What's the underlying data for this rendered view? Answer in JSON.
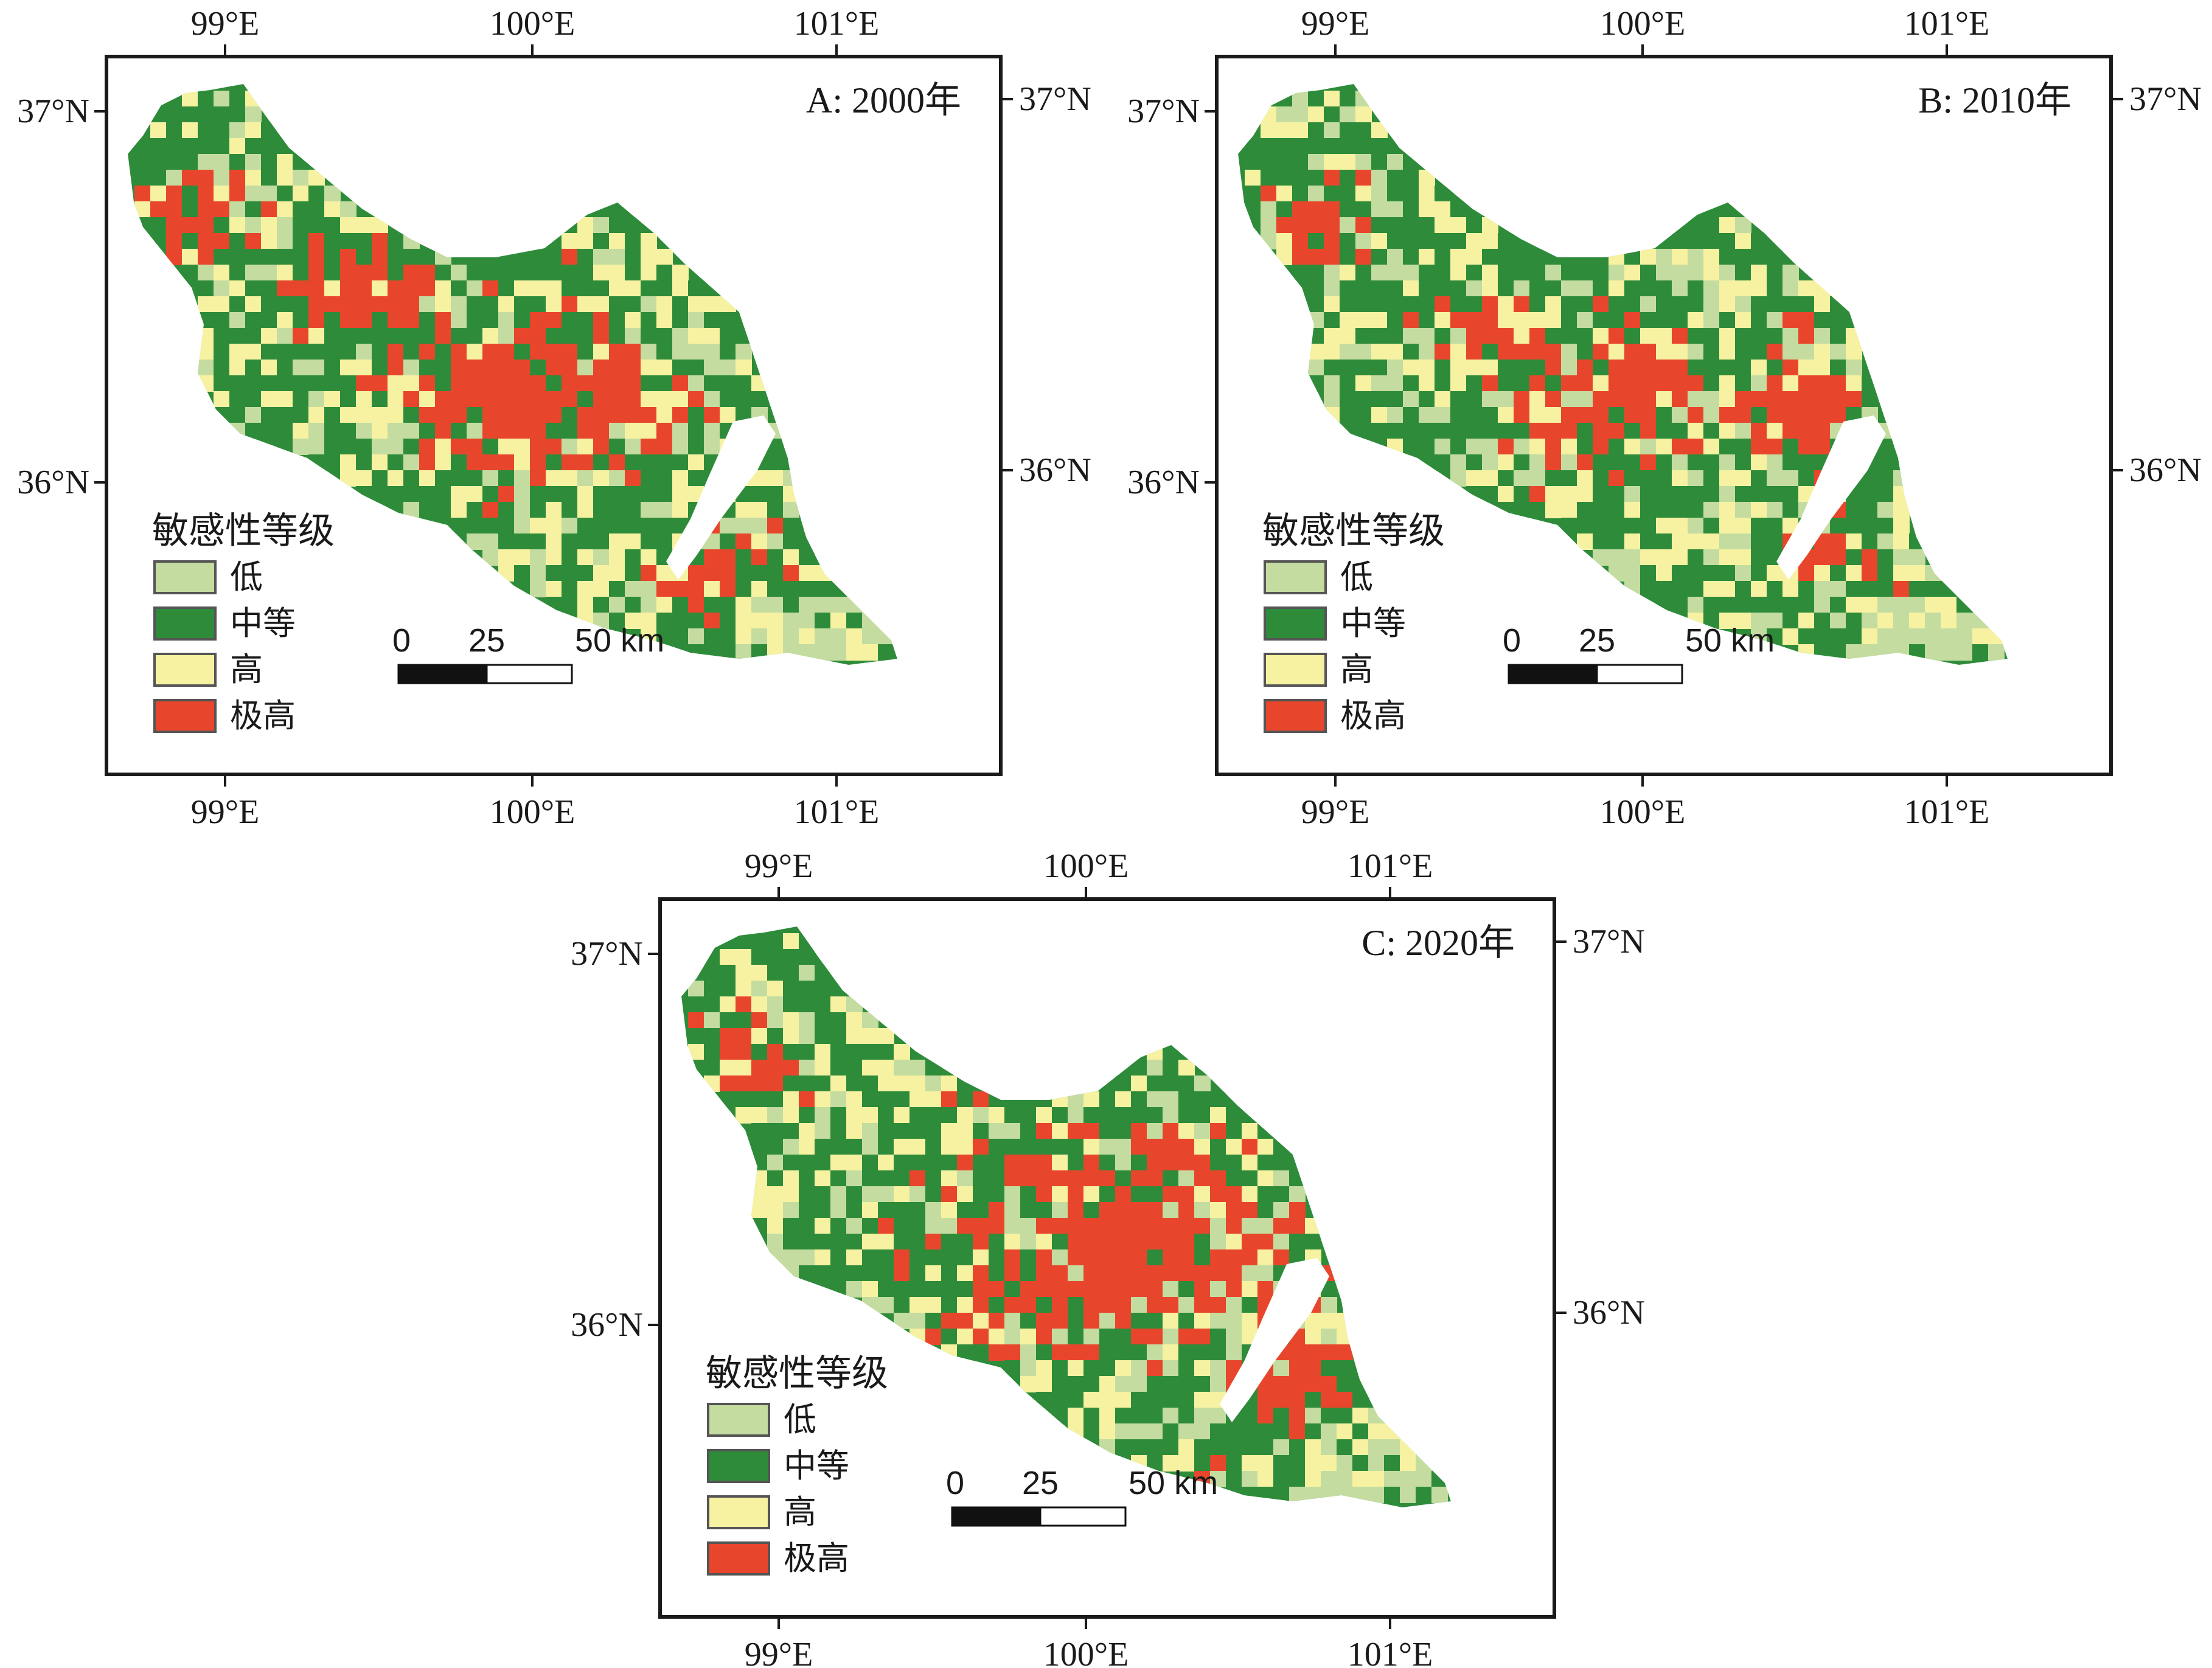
{
  "figure": {
    "legend": {
      "title": "敏感性等级",
      "items": [
        {
          "label": "低",
          "color": "#c4dca0"
        },
        {
          "label": "中等",
          "color": "#2e8b3a"
        },
        {
          "label": "高",
          "color": "#f6f2a2"
        },
        {
          "label": "极高",
          "color": "#e8462c"
        }
      ]
    },
    "scalebar": {
      "labels": [
        "0",
        "25",
        "50 km"
      ]
    },
    "axes": {
      "lon_labels": [
        "99°E",
        "100°E",
        "101°E"
      ],
      "lat_labels": [
        "37°N",
        "36°N"
      ]
    },
    "panels": [
      {
        "id": "A",
        "title": "A: 2000年"
      },
      {
        "id": "B",
        "title": "B: 2010年"
      },
      {
        "id": "C",
        "title": "C: 2020年"
      }
    ]
  }
}
